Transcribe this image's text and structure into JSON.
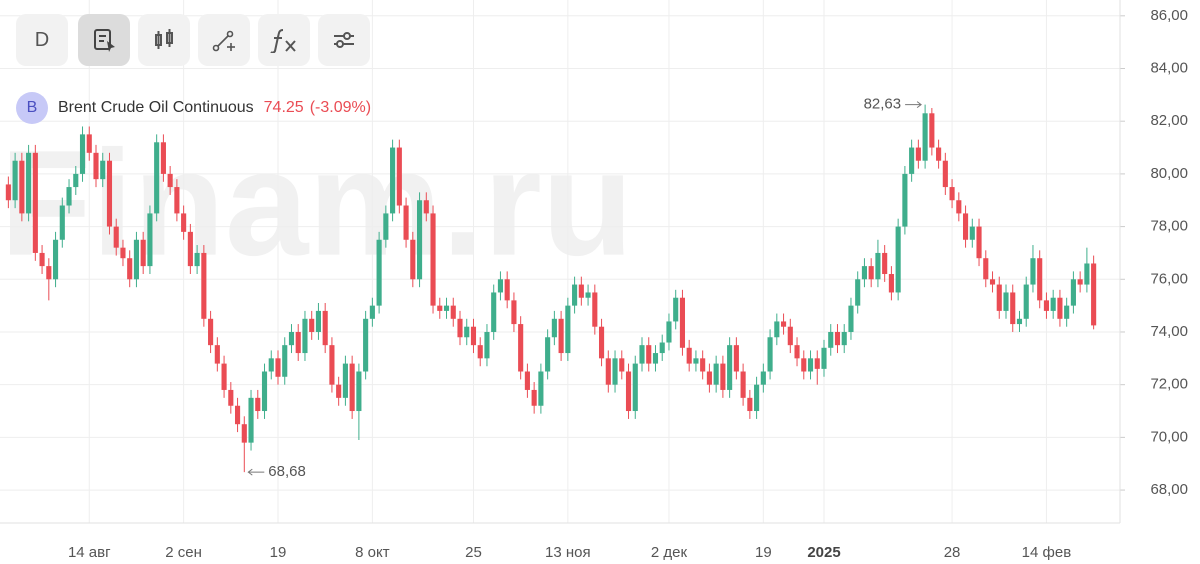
{
  "toolbar": {
    "period": "D"
  },
  "legend": {
    "badge": "B",
    "name": "Brent Crude Oil Continuous",
    "last": "74.25",
    "change": "(-3.09%)"
  },
  "watermark": "Finam.ru",
  "chart_data": {
    "type": "candlestick",
    "up_color": "#3fae8c",
    "down_color": "#ea4c54",
    "grid": true,
    "ylim": [
      66.75,
      86.6
    ],
    "yticks": [
      {
        "value": 68,
        "label": "68,00"
      },
      {
        "value": 70,
        "label": "70,00"
      },
      {
        "value": 72,
        "label": "72,00"
      },
      {
        "value": 74,
        "label": "74,00"
      },
      {
        "value": 76,
        "label": "76,00"
      },
      {
        "value": 78,
        "label": "78,00"
      },
      {
        "value": 80,
        "label": "80,00"
      },
      {
        "value": 82,
        "label": "82,00"
      },
      {
        "value": 84,
        "label": "84,00"
      },
      {
        "value": 86,
        "label": "86,00"
      }
    ],
    "annotations": [
      {
        "label": "82,63",
        "value": 82.63
      },
      {
        "label": "68,68",
        "value": 68.68
      }
    ],
    "categories": [
      null,
      null,
      null,
      null,
      null,
      null,
      null,
      null,
      null,
      null,
      null,
      null,
      "14 авг",
      null,
      null,
      null,
      null,
      null,
      null,
      null,
      null,
      null,
      null,
      null,
      null,
      null,
      "2 сен",
      null,
      null,
      null,
      null,
      null,
      null,
      null,
      null,
      null,
      null,
      null,
      null,
      null,
      "19",
      null,
      null,
      null,
      null,
      null,
      null,
      null,
      null,
      null,
      null,
      null,
      null,
      null,
      "8 окт",
      null,
      null,
      null,
      null,
      null,
      null,
      null,
      null,
      null,
      null,
      null,
      null,
      null,
      null,
      "25",
      null,
      null,
      null,
      null,
      null,
      null,
      null,
      null,
      null,
      null,
      null,
      null,
      null,
      "13 ноя",
      null,
      null,
      null,
      null,
      null,
      null,
      null,
      null,
      null,
      null,
      null,
      null,
      null,
      null,
      "2 дек",
      null,
      null,
      null,
      null,
      null,
      null,
      null,
      null,
      null,
      null,
      null,
      null,
      null,
      "19",
      null,
      null,
      null,
      null,
      null,
      null,
      null,
      null,
      "2025",
      null,
      null,
      null,
      null,
      null,
      null,
      null,
      null,
      null,
      null,
      null,
      null,
      null,
      null,
      null,
      null,
      null,
      null,
      "28",
      null,
      null,
      null,
      null,
      null,
      null,
      null,
      null,
      null,
      null,
      null,
      null,
      null,
      "14 фев",
      null,
      null,
      null,
      null,
      null,
      null,
      null
    ],
    "open": [
      79.6,
      79.0,
      80.5,
      78.5,
      80.8,
      77.0,
      76.5,
      76.0,
      77.5,
      78.8,
      79.5,
      80.0,
      81.5,
      80.8,
      79.8,
      80.5,
      78.0,
      77.2,
      76.8,
      76.0,
      77.5,
      76.5,
      78.5,
      81.2,
      80.0,
      79.5,
      78.5,
      77.8,
      76.5,
      77.0,
      74.5,
      73.5,
      72.8,
      71.8,
      71.2,
      70.5,
      69.8,
      71.5,
      71.0,
      72.5,
      73.0,
      72.3,
      73.5,
      74.0,
      73.2,
      74.5,
      74.0,
      74.8,
      73.5,
      72.0,
      71.5,
      72.8,
      71.0,
      72.5,
      74.5,
      75.0,
      77.5,
      78.5,
      81.0,
      78.8,
      77.5,
      76.0,
      79.0,
      78.5,
      75.0,
      74.8,
      75.0,
      74.5,
      73.8,
      74.2,
      73.5,
      73.0,
      74.0,
      75.5,
      76.0,
      75.2,
      74.3,
      72.5,
      71.8,
      71.2,
      72.5,
      73.8,
      74.5,
      73.2,
      75.0,
      75.8,
      75.3,
      75.5,
      74.2,
      73.0,
      72.0,
      73.0,
      72.5,
      71.0,
      72.8,
      73.5,
      72.8,
      73.2,
      73.6,
      74.4,
      75.3,
      73.4,
      72.8,
      73.0,
      72.5,
      72.0,
      72.8,
      71.8,
      73.5,
      72.5,
      71.5,
      71.0,
      72.0,
      72.5,
      73.8,
      74.4,
      74.2,
      73.5,
      73.0,
      72.5,
      73.0,
      72.6,
      73.4,
      74.0,
      73.5,
      74.0,
      75.0,
      76.0,
      76.5,
      76.0,
      77.0,
      76.2,
      75.5,
      78.0,
      80.0,
      81.0,
      80.5,
      82.3,
      81.0,
      80.5,
      79.5,
      79.0,
      78.5,
      77.5,
      78.0,
      76.8,
      76.0,
      75.8,
      74.8,
      75.5,
      74.3,
      74.5,
      75.8,
      76.8,
      75.2,
      74.8,
      75.3,
      74.5,
      75.0,
      76.0,
      75.8,
      76.6
    ],
    "high": [
      79.9,
      80.8,
      80.8,
      81.1,
      81.1,
      77.3,
      76.8,
      77.8,
      79.1,
      79.8,
      80.3,
      81.8,
      81.8,
      81.1,
      80.8,
      80.8,
      78.3,
      77.5,
      77.1,
      77.8,
      77.8,
      78.8,
      81.5,
      81.5,
      80.3,
      79.8,
      78.8,
      78.1,
      77.3,
      77.3,
      74.8,
      73.8,
      73.1,
      72.1,
      71.5,
      70.8,
      71.8,
      71.8,
      72.8,
      73.3,
      73.3,
      73.8,
      74.3,
      74.3,
      74.8,
      74.8,
      75.1,
      75.1,
      73.8,
      72.3,
      73.1,
      73.1,
      72.8,
      74.8,
      75.3,
      77.8,
      78.8,
      81.3,
      81.3,
      79.1,
      77.8,
      79.3,
      79.3,
      78.8,
      75.3,
      75.3,
      75.3,
      74.8,
      74.5,
      74.5,
      73.8,
      74.3,
      75.8,
      76.3,
      76.3,
      75.5,
      74.6,
      72.8,
      72.1,
      72.8,
      74.1,
      74.8,
      74.8,
      75.3,
      76.1,
      76.1,
      75.8,
      75.8,
      74.5,
      73.3,
      73.3,
      73.3,
      72.8,
      73.1,
      73.8,
      73.8,
      73.5,
      73.9,
      74.7,
      75.6,
      75.6,
      73.7,
      73.3,
      73.3,
      72.8,
      73.1,
      73.1,
      73.8,
      73.8,
      72.8,
      71.8,
      72.3,
      72.8,
      74.1,
      74.7,
      74.7,
      74.5,
      73.8,
      73.3,
      73.3,
      73.3,
      73.7,
      74.3,
      74.3,
      74.3,
      75.3,
      76.3,
      76.8,
      76.8,
      77.5,
      77.3,
      76.5,
      78.3,
      80.3,
      81.3,
      81.3,
      82.63,
      82.5,
      81.3,
      80.8,
      79.8,
      79.3,
      78.8,
      78.3,
      78.3,
      77.1,
      76.3,
      76.1,
      75.8,
      75.8,
      74.8,
      76.1,
      77.3,
      77.1,
      75.5,
      75.6,
      75.6,
      75.3,
      76.3,
      76.3,
      77.2,
      76.9
    ],
    "low": [
      78.7,
      78.7,
      78.2,
      78.2,
      76.7,
      76.2,
      75.2,
      75.7,
      77.2,
      78.5,
      79.2,
      79.7,
      80.5,
      79.5,
      79.5,
      77.7,
      76.9,
      76.5,
      75.7,
      75.7,
      76.2,
      76.2,
      78.2,
      79.7,
      79.2,
      78.2,
      77.5,
      76.2,
      76.2,
      74.2,
      73.2,
      72.5,
      71.5,
      70.9,
      70.2,
      68.68,
      69.5,
      70.7,
      70.7,
      72.2,
      72.0,
      72.0,
      73.2,
      72.9,
      72.9,
      73.7,
      73.7,
      73.2,
      71.7,
      71.2,
      71.2,
      70.7,
      69.9,
      72.2,
      74.2,
      74.7,
      77.2,
      78.2,
      78.5,
      77.2,
      75.7,
      75.7,
      78.2,
      74.7,
      74.5,
      74.5,
      74.2,
      73.5,
      73.5,
      73.2,
      72.7,
      72.7,
      73.7,
      75.2,
      74.9,
      74.0,
      72.2,
      71.5,
      70.9,
      70.9,
      72.2,
      73.5,
      72.9,
      72.9,
      74.7,
      75.0,
      75.0,
      73.9,
      72.7,
      71.7,
      71.7,
      72.2,
      70.7,
      70.7,
      72.5,
      72.5,
      72.5,
      72.9,
      73.3,
      74.1,
      73.1,
      72.5,
      72.5,
      72.2,
      71.7,
      71.7,
      71.5,
      71.5,
      72.2,
      71.2,
      70.7,
      70.7,
      71.7,
      72.2,
      73.5,
      73.9,
      73.2,
      72.7,
      72.2,
      72.2,
      72.0,
      72.3,
      73.1,
      73.2,
      73.2,
      73.7,
      74.7,
      75.7,
      75.7,
      75.7,
      75.9,
      75.2,
      75.2,
      77.7,
      79.7,
      80.2,
      80.2,
      80.7,
      80.2,
      79.2,
      78.7,
      78.2,
      77.2,
      77.2,
      76.5,
      75.7,
      75.5,
      74.5,
      74.5,
      74.0,
      74.0,
      74.2,
      75.5,
      74.9,
      74.5,
      74.5,
      74.2,
      74.2,
      74.7,
      75.5,
      75.5,
      74.1
    ],
    "close": [
      79.0,
      80.5,
      78.5,
      80.8,
      77.0,
      76.5,
      76.0,
      77.5,
      78.8,
      79.5,
      80.0,
      81.5,
      80.8,
      79.8,
      80.5,
      78.0,
      77.2,
      76.8,
      76.0,
      77.5,
      76.5,
      78.5,
      81.2,
      80.0,
      79.5,
      78.5,
      77.8,
      76.5,
      77.0,
      74.5,
      73.5,
      72.8,
      71.8,
      71.2,
      70.5,
      69.8,
      71.5,
      71.0,
      72.5,
      73.0,
      72.3,
      73.5,
      74.0,
      73.2,
      74.5,
      74.0,
      74.8,
      73.5,
      72.0,
      71.5,
      72.8,
      71.0,
      72.5,
      74.5,
      75.0,
      77.5,
      78.5,
      81.0,
      78.8,
      77.5,
      76.0,
      79.0,
      78.5,
      75.0,
      74.8,
      75.0,
      74.5,
      73.8,
      74.2,
      73.5,
      73.0,
      74.0,
      75.5,
      76.0,
      75.2,
      74.3,
      72.5,
      71.8,
      71.2,
      72.5,
      73.8,
      74.5,
      73.2,
      75.0,
      75.8,
      75.3,
      75.5,
      74.2,
      73.0,
      72.0,
      73.0,
      72.5,
      71.0,
      72.8,
      73.5,
      72.8,
      73.2,
      73.6,
      74.4,
      75.3,
      73.4,
      72.8,
      73.0,
      72.5,
      72.0,
      72.8,
      71.8,
      73.5,
      72.5,
      71.5,
      71.0,
      72.0,
      72.5,
      73.8,
      74.4,
      74.2,
      73.5,
      73.0,
      72.5,
      73.0,
      72.6,
      73.4,
      74.0,
      73.5,
      74.0,
      75.0,
      76.0,
      76.5,
      76.0,
      77.0,
      76.2,
      75.5,
      78.0,
      80.0,
      81.0,
      80.5,
      82.3,
      81.0,
      80.5,
      79.5,
      79.0,
      78.5,
      77.5,
      78.0,
      76.8,
      76.0,
      75.8,
      74.8,
      75.5,
      74.3,
      74.5,
      75.8,
      76.8,
      75.2,
      74.8,
      75.3,
      74.5,
      75.0,
      76.0,
      75.8,
      76.6,
      74.25
    ]
  }
}
